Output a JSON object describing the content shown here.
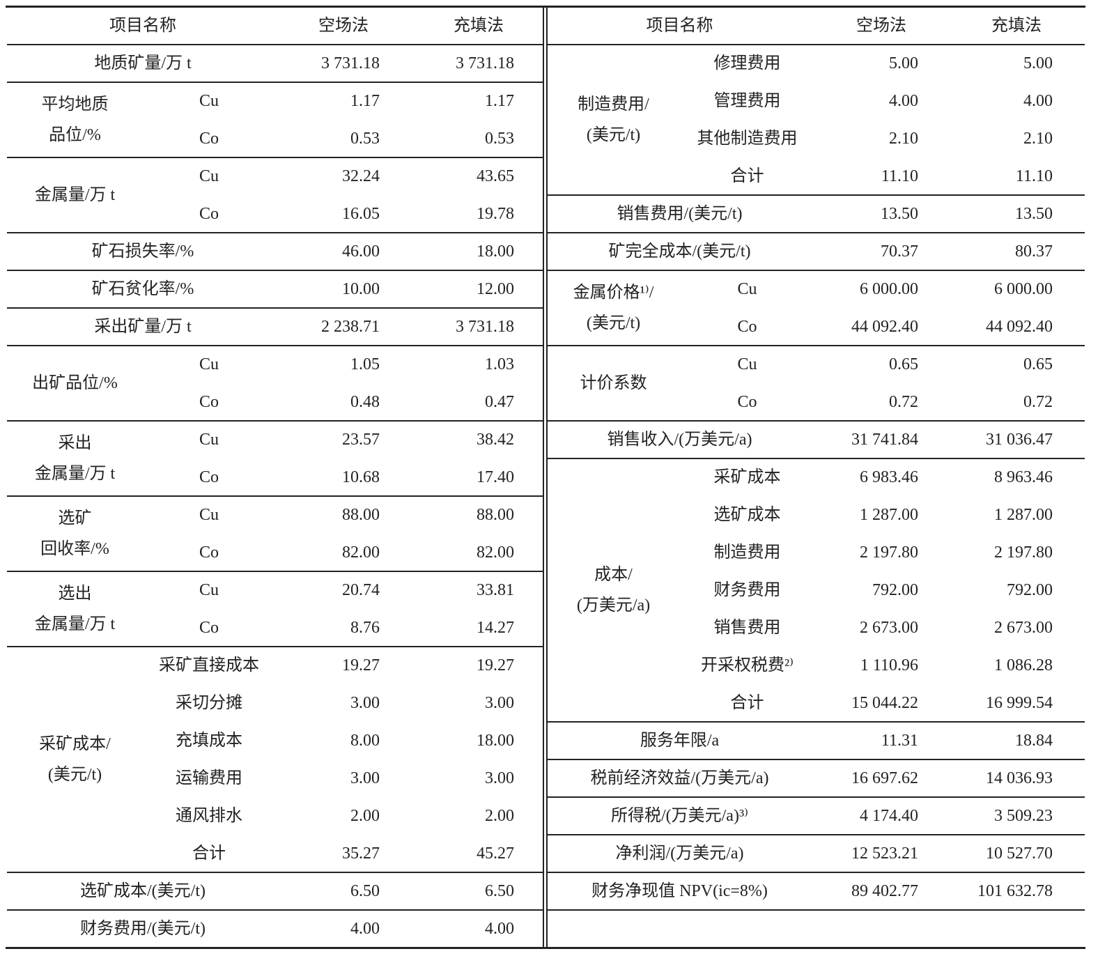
{
  "left": {
    "headers": [
      "项目名称",
      "空场法",
      "充填法"
    ],
    "groups": [
      {
        "label": "地质矿量/万 t",
        "rows": [
          {
            "values": [
              "3 731.18",
              "3 731.18"
            ]
          }
        ]
      },
      {
        "label": "平均地质\n品位/%",
        "rows": [
          {
            "sub": "Cu",
            "values": [
              "1.17",
              "1.17"
            ]
          },
          {
            "sub": "Co",
            "values": [
              "0.53",
              "0.53"
            ]
          }
        ]
      },
      {
        "label": "金属量/万 t",
        "rows": [
          {
            "sub": "Cu",
            "values": [
              "32.24",
              "43.65"
            ]
          },
          {
            "sub": "Co",
            "values": [
              "16.05",
              "19.78"
            ]
          }
        ]
      },
      {
        "label": "矿石损失率/%",
        "rows": [
          {
            "values": [
              "46.00",
              "18.00"
            ]
          }
        ]
      },
      {
        "label": "矿石贫化率/%",
        "rows": [
          {
            "values": [
              "10.00",
              "12.00"
            ]
          }
        ]
      },
      {
        "label": "采出矿量/万 t",
        "rows": [
          {
            "values": [
              "2 238.71",
              "3 731.18"
            ]
          }
        ]
      },
      {
        "label": "出矿品位/%",
        "rows": [
          {
            "sub": "Cu",
            "values": [
              "1.05",
              "1.03"
            ]
          },
          {
            "sub": "Co",
            "values": [
              "0.48",
              "0.47"
            ]
          }
        ]
      },
      {
        "label": "采出\n金属量/万 t",
        "rows": [
          {
            "sub": "Cu",
            "values": [
              "23.57",
              "38.42"
            ]
          },
          {
            "sub": "Co",
            "values": [
              "10.68",
              "17.40"
            ]
          }
        ]
      },
      {
        "label": "选矿\n回收率/%",
        "rows": [
          {
            "sub": "Cu",
            "values": [
              "88.00",
              "88.00"
            ]
          },
          {
            "sub": "Co",
            "values": [
              "82.00",
              "82.00"
            ]
          }
        ]
      },
      {
        "label": "选出\n金属量/万 t",
        "rows": [
          {
            "sub": "Cu",
            "values": [
              "20.74",
              "33.81"
            ]
          },
          {
            "sub": "Co",
            "values": [
              "8.76",
              "14.27"
            ]
          }
        ]
      },
      {
        "label": "采矿成本/\n(美元/t)",
        "rows": [
          {
            "sub": "采矿直接成本",
            "values": [
              "19.27",
              "19.27"
            ]
          },
          {
            "sub": "采切分摊",
            "values": [
              "3.00",
              "3.00"
            ]
          },
          {
            "sub": "充填成本",
            "values": [
              "8.00",
              "18.00"
            ]
          },
          {
            "sub": "运输费用",
            "values": [
              "3.00",
              "3.00"
            ]
          },
          {
            "sub": "通风排水",
            "values": [
              "2.00",
              "2.00"
            ]
          },
          {
            "sub": "合计",
            "values": [
              "35.27",
              "45.27"
            ]
          }
        ]
      },
      {
        "label": "选矿成本/(美元/t)",
        "rows": [
          {
            "values": [
              "6.50",
              "6.50"
            ]
          }
        ]
      },
      {
        "label": "财务费用/(美元/t)",
        "rows": [
          {
            "values": [
              "4.00",
              "4.00"
            ]
          }
        ]
      }
    ]
  },
  "right": {
    "headers": [
      "项目名称",
      "空场法",
      "充填法"
    ],
    "groups": [
      {
        "label": "制造费用/\n(美元/t)",
        "rows": [
          {
            "sub": "修理费用",
            "values": [
              "5.00",
              "5.00"
            ]
          },
          {
            "sub": "管理费用",
            "values": [
              "4.00",
              "4.00"
            ]
          },
          {
            "sub": "其他制造费用",
            "values": [
              "2.10",
              "2.10"
            ]
          },
          {
            "sub": "合计",
            "values": [
              "11.10",
              "11.10"
            ]
          }
        ]
      },
      {
        "label": "销售费用/(美元/t)",
        "rows": [
          {
            "values": [
              "13.50",
              "13.50"
            ]
          }
        ]
      },
      {
        "label": "矿完全成本/(美元/t)",
        "rows": [
          {
            "values": [
              "70.37",
              "80.37"
            ]
          }
        ]
      },
      {
        "label": "金属价格¹⁾/\n(美元/t)",
        "rows": [
          {
            "sub": "Cu",
            "values": [
              "6 000.00",
              "6 000.00"
            ]
          },
          {
            "sub": "Co",
            "values": [
              "44 092.40",
              "44 092.40"
            ]
          }
        ]
      },
      {
        "label": "计价系数",
        "rows": [
          {
            "sub": "Cu",
            "values": [
              "0.65",
              "0.65"
            ]
          },
          {
            "sub": "Co",
            "values": [
              "0.72",
              "0.72"
            ]
          }
        ]
      },
      {
        "label": "销售收入/(万美元/a)",
        "rows": [
          {
            "values": [
              "31 741.84",
              "31 036.47"
            ]
          }
        ]
      },
      {
        "label": "成本/\n(万美元/a)",
        "rows": [
          {
            "sub": "采矿成本",
            "values": [
              "6 983.46",
              "8 963.46"
            ]
          },
          {
            "sub": "选矿成本",
            "values": [
              "1 287.00",
              "1 287.00"
            ]
          },
          {
            "sub": "制造费用",
            "values": [
              "2 197.80",
              "2 197.80"
            ]
          },
          {
            "sub": "财务费用",
            "values": [
              "792.00",
              "792.00"
            ]
          },
          {
            "sub": "销售费用",
            "values": [
              "2 673.00",
              "2 673.00"
            ]
          },
          {
            "sub": "开采权税费²⁾",
            "values": [
              "1 110.96",
              "1 086.28"
            ]
          },
          {
            "sub": "合计",
            "values": [
              "15 044.22",
              "16 999.54"
            ]
          }
        ]
      },
      {
        "label": "服务年限/a",
        "rows": [
          {
            "values": [
              "11.31",
              "18.84"
            ]
          }
        ]
      },
      {
        "label": "税前经济效益/(万美元/a)",
        "rows": [
          {
            "values": [
              "16 697.62",
              "14 036.93"
            ]
          }
        ]
      },
      {
        "label": "所得税/(万美元/a)³⁾",
        "rows": [
          {
            "values": [
              "4 174.40",
              "3 509.23"
            ]
          }
        ]
      },
      {
        "label": "净利润/(万美元/a)",
        "rows": [
          {
            "values": [
              "12 523.21",
              "10 527.70"
            ]
          }
        ]
      },
      {
        "label": "财务净现值 NPV(ic=8%)",
        "rows": [
          {
            "values": [
              "89 402.77",
              "101 632.78"
            ]
          }
        ]
      }
    ]
  }
}
